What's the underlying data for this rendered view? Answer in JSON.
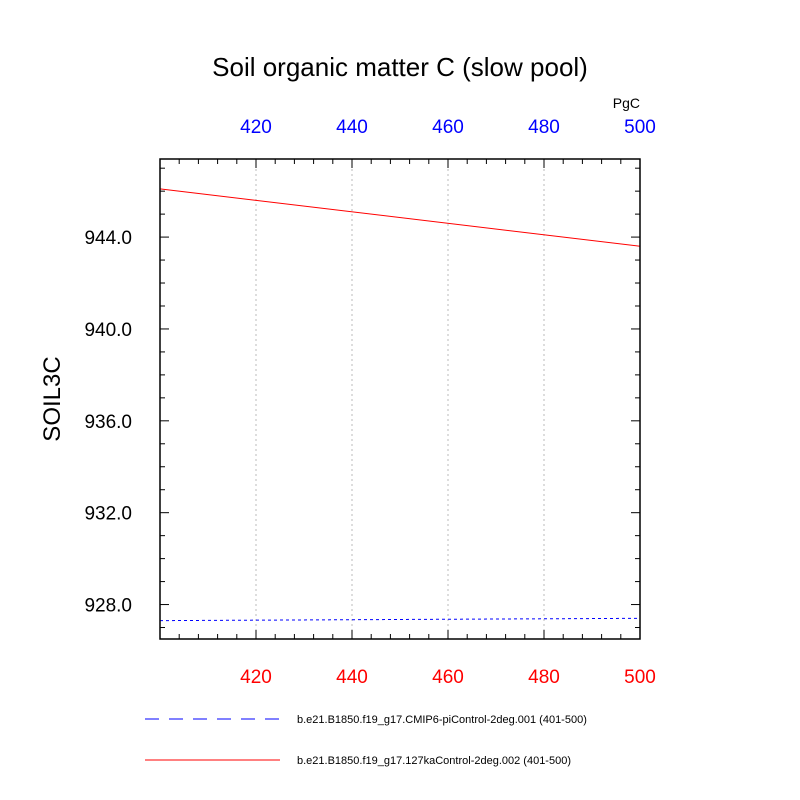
{
  "chart_data": {
    "type": "line",
    "title": "Soil organic matter C (slow pool)",
    "ylabel": "SOIL3C",
    "units": "PgC",
    "xlim": [
      400,
      500
    ],
    "ylim": [
      926.5,
      947.4
    ],
    "x_ticks": [
      420,
      440,
      460,
      480,
      500
    ],
    "x_tick_labels": [
      "420",
      "440",
      "460",
      "480",
      "500"
    ],
    "y_ticks": [
      928.0,
      932.0,
      936.0,
      940.0,
      944.0
    ],
    "y_tick_labels": [
      "928.0",
      "932.0",
      "936.0",
      "940.0",
      "944.0"
    ],
    "grid": "x-vertical-dotted",
    "bottom_axis_color": "#ff0000",
    "top_axis_color": "#0000ff",
    "series": [
      {
        "name": "b.e21.B1850.f19_g17.CMIP6-piControl-2deg.001 (401-500)",
        "color": "#0000ff",
        "style": "dashed",
        "x": [
          400,
          500
        ],
        "y": [
          927.3,
          927.4
        ]
      },
      {
        "name": "b.e21.B1850.f19_g17.127kaControl-2deg.002 (401-500)",
        "color": "#ff0000",
        "style": "solid",
        "x": [
          400,
          500
        ],
        "y": [
          946.1,
          943.6
        ]
      }
    ],
    "legend_position": "bottom"
  }
}
